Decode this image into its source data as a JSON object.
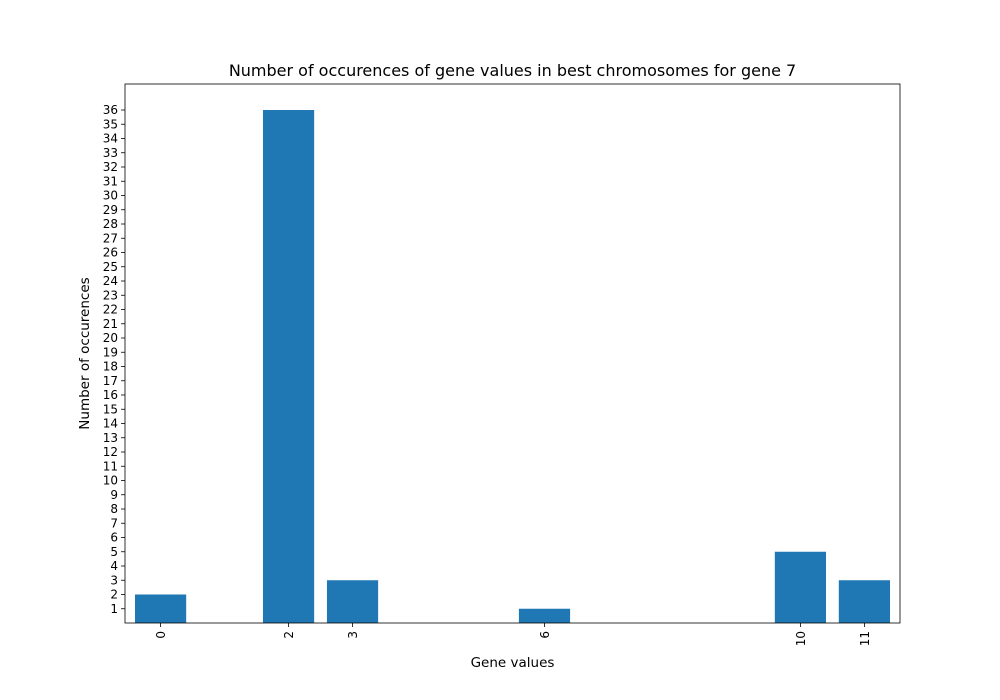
{
  "chart_data": {
    "type": "bar",
    "title": "Number of occurences of gene values in best chromosomes for gene 7",
    "xlabel": "Gene values",
    "ylabel": "Number of occurences",
    "categories": [
      "0",
      "2",
      "3",
      "6",
      "10",
      "11"
    ],
    "x": [
      0,
      2,
      3,
      6,
      10,
      11
    ],
    "values": [
      2,
      36,
      3,
      1,
      5,
      3
    ],
    "xlim": [
      -0.4,
      11.4
    ],
    "ylim": [
      0,
      36
    ],
    "yticks": [
      1,
      2,
      3,
      4,
      5,
      6,
      7,
      8,
      9,
      10,
      11,
      12,
      13,
      14,
      15,
      16,
      17,
      18,
      19,
      20,
      21,
      22,
      23,
      24,
      25,
      26,
      27,
      28,
      29,
      30,
      31,
      32,
      33,
      34,
      35,
      36
    ],
    "xtick_rotation": "vertical",
    "grid": false,
    "legend": "none",
    "bar_color": "#1f77b4"
  }
}
